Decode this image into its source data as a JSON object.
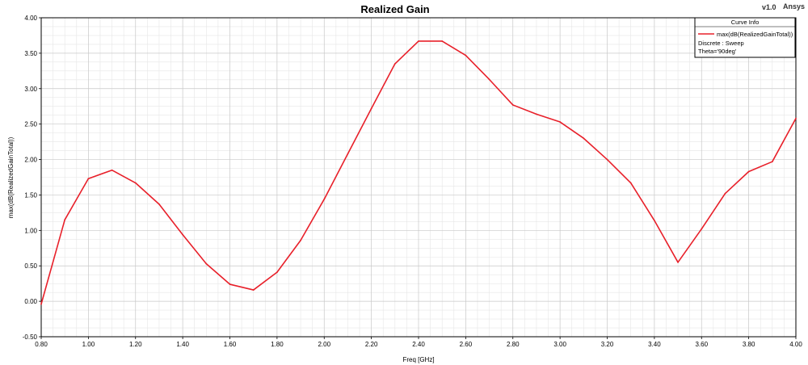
{
  "header": {
    "version": "v1.0",
    "brand": "Ansys"
  },
  "legend": {
    "title": "Curve Info",
    "series_label": "max(dB(RealizedGainTotal))",
    "line1": "Discrete : Sweep",
    "line2": "Theta='90deg'"
  },
  "colors": {
    "series": "#e8202a",
    "grid_major": "#c8c8c8",
    "grid_minor": "#e6e6e6",
    "axis": "#000000"
  },
  "chart_data": {
    "type": "line",
    "title": "Realized Gain",
    "xlabel": "Freq [GHz]",
    "ylabel": "max(dB(RealizedGainTotal))",
    "xlim": [
      0.8,
      4.0
    ],
    "ylim": [
      -0.5,
      4.0
    ],
    "grid": true,
    "legend_position": "top-right",
    "x_ticks": [
      "0.80",
      "1.00",
      "1.20",
      "1.40",
      "1.60",
      "1.80",
      "2.00",
      "2.20",
      "2.40",
      "2.60",
      "2.80",
      "3.00",
      "3.20",
      "3.40",
      "3.60",
      "3.80",
      "4.00"
    ],
    "y_ticks": [
      "-0.50",
      "0.00",
      "0.50",
      "1.00",
      "1.50",
      "2.00",
      "2.50",
      "3.00",
      "3.50",
      "4.00"
    ],
    "series": [
      {
        "name": "max(dB(RealizedGainTotal))",
        "x": [
          0.8,
          0.9,
          1.0,
          1.1,
          1.2,
          1.3,
          1.4,
          1.5,
          1.6,
          1.7,
          1.8,
          1.9,
          2.0,
          2.1,
          2.2,
          2.3,
          2.4,
          2.5,
          2.6,
          2.7,
          2.8,
          2.9,
          3.0,
          3.1,
          3.2,
          3.3,
          3.4,
          3.5,
          3.6,
          3.7,
          3.8,
          3.9,
          4.0
        ],
        "y": [
          -0.04,
          1.15,
          1.73,
          1.85,
          1.67,
          1.37,
          0.94,
          0.53,
          0.24,
          0.16,
          0.41,
          0.86,
          1.44,
          2.08,
          2.72,
          3.35,
          3.67,
          3.67,
          3.47,
          3.13,
          2.77,
          2.64,
          2.53,
          2.3,
          2.0,
          1.67,
          1.14,
          0.55,
          1.02,
          1.52,
          1.83,
          1.97,
          2.58
        ]
      }
    ]
  }
}
